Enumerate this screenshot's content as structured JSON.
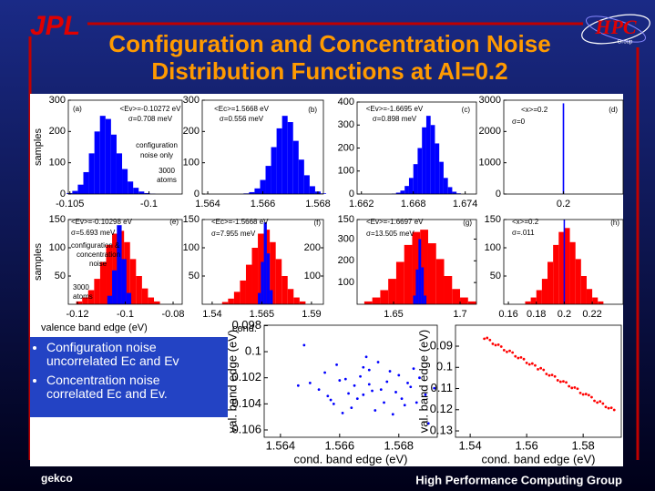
{
  "header": {
    "logo": "JPL",
    "title": [
      "Configuration and Concentration Noise",
      "Distribution Functions at Al=0.2"
    ],
    "hpc": "HPC",
    "hpc_sub": "Group"
  },
  "chart_data": [
    {
      "type": "histogram",
      "annotations": [
        "(a)",
        "<Ev>=-0.10272 eV",
        "σ=0.708 meV",
        "configuration",
        "noise only",
        "3000",
        "atoms"
      ],
      "ylabel": "samples",
      "xlim": [
        -0.1051,
        -0.0979
      ],
      "xticks": [
        -0.105,
        -0.1
      ],
      "ylim": [
        0,
        300
      ],
      "yticks": [
        0,
        100,
        200,
        300
      ],
      "series": [
        {
          "color": "#0000ff",
          "bins": [
            -0.1052,
            -0.10485,
            -0.1045,
            -0.10415,
            -0.1038,
            -0.10345,
            -0.1031,
            -0.10275,
            -0.1024,
            -0.10205,
            -0.1017,
            -0.10135,
            -0.101,
            -0.10065,
            -0.1003,
            -0.09995,
            -0.0996
          ],
          "values": [
            3,
            10,
            30,
            70,
            130,
            200,
            250,
            240,
            190,
            130,
            80,
            40,
            20,
            8,
            3,
            1
          ]
        }
      ]
    },
    {
      "type": "histogram",
      "annotations": [
        "(b)",
        "<Ec>=1.5668 eV",
        "σ=0.556 meV"
      ],
      "xlim": [
        1.5638,
        1.5682
      ],
      "xticks": [
        1.564,
        1.566,
        1.568
      ],
      "ylim": [
        0,
        300
      ],
      "yticks": [
        0,
        100,
        200,
        300
      ],
      "series": [
        {
          "color": "#0000ff",
          "bins": [
            1.5653,
            1.5655,
            1.5657,
            1.5659,
            1.5661,
            1.5663,
            1.5665,
            1.5667,
            1.5669,
            1.5671,
            1.5673,
            1.5675,
            1.5677,
            1.5679,
            1.5681,
            1.5683
          ],
          "values": [
            2,
            6,
            18,
            45,
            90,
            150,
            210,
            250,
            230,
            170,
            110,
            60,
            25,
            8,
            2
          ]
        }
      ]
    },
    {
      "type": "histogram",
      "annotations": [
        "(c)",
        "<Ev>=-1.6695 eV",
        "σ=0.898 meV"
      ],
      "xlim": [
        1.6615,
        1.6753
      ],
      "xticks": [
        1.662,
        1.668,
        1.674
      ],
      "ylim": [
        0,
        400
      ],
      "yticks": [
        0,
        100,
        200,
        300,
        400
      ],
      "series": [
        {
          "color": "#0000ff",
          "bins": [
            1.6655,
            1.666,
            1.6665,
            1.667,
            1.6675,
            1.668,
            1.6685,
            1.669,
            1.6695,
            1.67,
            1.6705,
            1.671,
            1.6715,
            1.672,
            1.6725,
            1.673,
            1.6735
          ],
          "values": [
            2,
            6,
            15,
            35,
            70,
            130,
            200,
            290,
            340,
            300,
            220,
            140,
            70,
            30,
            10,
            3
          ]
        }
      ]
    },
    {
      "type": "histogram",
      "annotations": [
        "(d)",
        "<x>=0.2",
        "σ=0"
      ],
      "xlim": [
        0.16,
        0.24
      ],
      "xticks": [
        0.2
      ],
      "ylim": [
        0,
        3000
      ],
      "yticks": [
        0,
        1000,
        2000,
        3000
      ],
      "series": [
        {
          "color": "#0000ff",
          "bins": [
            0.1995,
            0.2005
          ],
          "values": [
            2900
          ]
        }
      ]
    },
    {
      "type": "histogram",
      "annotations": [
        "(e)",
        "<Ev>=-0.10298 eV",
        "σ=5.693 meV",
        "configuration &",
        "concentration",
        "noise",
        "3000",
        "atoms"
      ],
      "ylabel": "samples",
      "xlabel": "valence band edge (eV)",
      "xlim": [
        -0.1238,
        -0.0762
      ],
      "xticks": [
        -0.12,
        -0.1,
        -0.08
      ],
      "ylim": [
        0,
        150
      ],
      "yticks": [
        50,
        100,
        150
      ],
      "series": [
        {
          "color": "#ff0000",
          "bins": [
            -0.1205,
            -0.118,
            -0.1155,
            -0.113,
            -0.1105,
            -0.108,
            -0.1055,
            -0.103,
            -0.1005,
            -0.098,
            -0.0955,
            -0.093,
            -0.0905,
            -0.088,
            -0.0855
          ],
          "values": [
            5,
            12,
            25,
            45,
            75,
            105,
            125,
            130,
            110,
            80,
            50,
            28,
            12,
            5
          ]
        },
        {
          "color": "#0000ff",
          "bins": [
            -0.1075,
            -0.1055,
            -0.1035,
            -0.1015,
            -0.0995,
            -0.0975
          ],
          "values": [
            15,
            60,
            140,
            80,
            20
          ]
        }
      ]
    },
    {
      "type": "histogram",
      "annotations": [
        "(f)",
        "<Ec>=-1.5668 eV",
        "σ=7.955 meV"
      ],
      "xlabel": "cond. band edge (eV)",
      "xlim": [
        1.535,
        1.596
      ],
      "xticks": [
        1.54,
        1.565,
        1.59
      ],
      "ylim": [
        0,
        150
      ],
      "yticks": [
        50,
        100,
        150
      ],
      "y2lim": [
        0,
        300
      ],
      "y2ticks": [
        100,
        200
      ],
      "series": [
        {
          "color": "#ff0000",
          "bins": [
            1.545,
            1.548,
            1.551,
            1.554,
            1.557,
            1.56,
            1.563,
            1.566,
            1.569,
            1.572,
            1.575,
            1.578,
            1.581,
            1.584,
            1.587
          ],
          "values": [
            4,
            10,
            22,
            42,
            70,
            100,
            125,
            132,
            110,
            80,
            50,
            27,
            12,
            5
          ]
        },
        {
          "color": "#0000ff",
          "axis": "y2",
          "bins": [
            1.563,
            1.5645,
            1.566,
            1.5675,
            1.569,
            1.5705
          ],
          "values": [
            40,
            150,
            290,
            180,
            50
          ]
        }
      ]
    },
    {
      "type": "histogram",
      "annotations": [
        "(g)",
        "<Ev>=-1.6697 eV",
        "σ=13.505 meV"
      ],
      "xlim": [
        1.6226,
        1.7123
      ],
      "xticks": [
        1.65,
        1.7
      ],
      "ylim": [
        0,
        150
      ],
      "yticks": [
        150
      ],
      "y2lim": [
        0,
        390
      ],
      "y2ticks": [
        100,
        200,
        300
      ],
      "series": [
        {
          "color": "#ff0000",
          "bins": [
            1.628,
            1.634,
            1.64,
            1.646,
            1.652,
            1.658,
            1.664,
            1.67,
            1.676,
            1.682,
            1.688,
            1.694,
            1.7,
            1.706,
            1.712
          ],
          "values": [
            5,
            12,
            25,
            45,
            75,
            105,
            128,
            132,
            108,
            80,
            50,
            27,
            12,
            5
          ]
        },
        {
          "color": "#0000ff",
          "axis": "y2",
          "bins": [
            1.6647,
            1.6667,
            1.6687,
            1.6707,
            1.6727,
            1.6747
          ],
          "values": [
            40,
            160,
            300,
            170,
            40
          ]
        }
      ]
    },
    {
      "type": "histogram",
      "annotations": [
        "(h)",
        "<x>=0.2",
        "σ=.011"
      ],
      "xlim": [
        0.1567,
        0.2421
      ],
      "xticks": [
        0.16,
        0.18,
        0.2,
        0.22
      ],
      "ylim": [
        0,
        150
      ],
      "yticks": [
        50,
        100,
        150
      ],
      "series": [
        {
          "color": "#ff0000",
          "bins": [
            0.172,
            0.176,
            0.18,
            0.184,
            0.188,
            0.192,
            0.196,
            0.2,
            0.204,
            0.208,
            0.212,
            0.216,
            0.22,
            0.224,
            0.228
          ],
          "values": [
            5,
            12,
            25,
            45,
            75,
            105,
            128,
            135,
            110,
            80,
            50,
            27,
            12,
            5
          ]
        },
        {
          "color": "#0000ff",
          "bins": [
            0.1995,
            0.2005
          ],
          "values": [
            150
          ]
        }
      ]
    },
    {
      "type": "scatter",
      "xlabel": "cond. band edge (eV)",
      "ylabel": "val. band edge (eV)",
      "color": "#0000ff",
      "xlim": [
        1.56345,
        1.5693
      ],
      "xticks": [
        1.564,
        1.566,
        1.568
      ],
      "ylim": [
        0.10656,
        0.09797
      ],
      "yticks": [
        0.098,
        0.1,
        0.102,
        0.104,
        0.106
      ],
      "x": [
        1.5662,
        1.5671,
        1.568,
        1.5656,
        1.5668,
        1.5675,
        1.5684,
        1.565,
        1.5664,
        1.5677,
        1.5689,
        1.5659,
        1.567,
        1.5666,
        1.5682,
        1.5653,
        1.5673,
        1.5687,
        1.5661,
        1.5679,
        1.5667,
        1.5658,
        1.5685,
        1.5672,
        1.5646,
        1.5692,
        1.5669,
        1.5676,
        1.5663,
        1.5681,
        1.5655,
        1.5674,
        1.5665,
        1.5678,
        1.566,
        1.5686,
        1.567,
        1.5657,
        1.5683,
        1.5668,
        1.5648,
        1.569
      ],
      "y": [
        0.1021,
        0.103,
        0.1018,
        0.1034,
        0.1012,
        0.1039,
        0.1027,
        0.1024,
        0.1043,
        0.1015,
        0.1033,
        0.101,
        0.1025,
        0.1036,
        0.1041,
        0.1029,
        0.1008,
        0.102,
        0.1047,
        0.1031,
        0.1019,
        0.104,
        0.1013,
        0.1045,
        0.1026,
        0.1028,
        0.1004,
        0.1023,
        0.1032,
        0.1036,
        0.1016,
        0.1029,
        0.1026,
        0.1048,
        0.1022,
        0.1039,
        0.1014,
        0.1037,
        0.1024,
        0.1033,
        0.0995,
        0.1055
      ]
    },
    {
      "type": "scatter",
      "xlabel": "cond. band edge (eV)",
      "ylabel": "val. band edge (eV)",
      "color": "#ff0000",
      "xlim": [
        1.5348,
        1.5935
      ],
      "xticks": [
        1.54,
        1.56,
        1.58
      ],
      "ylim": [
        0.133,
        0.0801
      ],
      "yticks": [
        0.09,
        0.1,
        0.11,
        0.12,
        0.13
      ],
      "x": [
        1.545,
        1.547,
        1.549,
        1.551,
        1.553,
        1.555,
        1.557,
        1.559,
        1.561,
        1.563,
        1.565,
        1.567,
        1.569,
        1.571,
        1.573,
        1.575,
        1.577,
        1.579,
        1.581,
        1.583,
        1.585,
        1.587,
        1.589,
        1.591,
        1.546,
        1.548,
        1.55,
        1.552,
        1.554,
        1.556,
        1.558,
        1.56,
        1.562,
        1.564,
        1.566,
        1.568,
        1.57,
        1.572,
        1.574,
        1.576,
        1.578,
        1.58,
        1.582,
        1.584,
        1.586,
        1.588,
        1.59
      ],
      "y": [
        0.0865,
        0.0871,
        0.0895,
        0.0902,
        0.0927,
        0.093,
        0.0956,
        0.0961,
        0.0986,
        0.0991,
        0.1004,
        0.1031,
        0.1036,
        0.1061,
        0.1066,
        0.1089,
        0.1095,
        0.1121,
        0.1126,
        0.1141,
        0.1166,
        0.1171,
        0.1193,
        0.1201,
        0.0861,
        0.0889,
        0.0893,
        0.0919,
        0.0922,
        0.0948,
        0.0953,
        0.0979,
        0.0982,
        0.1009,
        0.1012,
        0.1038,
        0.1043,
        0.1068,
        0.1071,
        0.1097,
        0.1101,
        0.1128,
        0.1131,
        0.1158,
        0.1161,
        0.1187,
        0.1191
      ]
    }
  ],
  "bullets": [
    [
      "Configuration noise",
      "uncorrelated Ec and Ev"
    ],
    [
      "Concentration noise",
      "correlated Ec and Ev."
    ]
  ],
  "footer": {
    "left": "gekco",
    "right": "High Performance Computing Group"
  }
}
